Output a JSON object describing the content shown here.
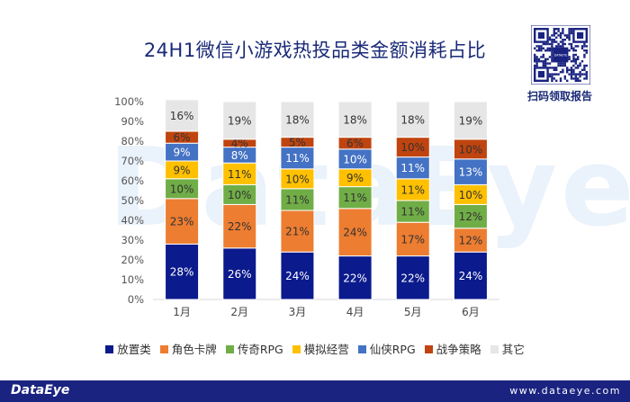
{
  "header": {
    "title": "24H1微信小游戏热投品类金额消耗占比",
    "qr_caption": "扫码领取报告",
    "qr_center_text": "DATAEYE"
  },
  "watermark": "DataEye",
  "footer": {
    "brand": "DataEye",
    "url": "www.dataeye.com"
  },
  "chart_data": {
    "type": "bar",
    "stacked": true,
    "categories": [
      "1月",
      "2月",
      "3月",
      "4月",
      "5月",
      "6月"
    ],
    "y_ticks": [
      "0%",
      "10%",
      "20%",
      "30%",
      "40%",
      "50%",
      "60%",
      "70%",
      "80%",
      "90%",
      "100%"
    ],
    "ylim": [
      0,
      100
    ],
    "grid": false,
    "legend_position": "bottom",
    "series": [
      {
        "name": "放置类",
        "color": "#0b1a8c",
        "label_color": "#ffffff",
        "values": [
          28,
          26,
          24,
          22,
          22,
          24
        ],
        "labels": [
          "28%",
          "26%",
          "24%",
          "22%",
          "22%",
          "24%"
        ]
      },
      {
        "name": "角色卡牌",
        "color": "#ed7d31",
        "label_color": "#333333",
        "values": [
          23,
          22,
          21,
          24,
          17,
          12
        ],
        "labels": [
          "23%",
          "22%",
          "21%",
          "24%",
          "17%",
          "12%"
        ]
      },
      {
        "name": "传奇RPG",
        "color": "#70ad47",
        "label_color": "#333333",
        "values": [
          10,
          10,
          11,
          11,
          11,
          12
        ],
        "labels": [
          "10%",
          "10%",
          "11%",
          "11%",
          "11%",
          "12%"
        ]
      },
      {
        "name": "模拟经营",
        "color": "#ffc000",
        "label_color": "#333333",
        "values": [
          9,
          11,
          10,
          9,
          11,
          10
        ],
        "labels": [
          "9%",
          "11%",
          "10%",
          "9%",
          "11%",
          "10%"
        ]
      },
      {
        "name": "仙侠RPG",
        "color": "#4472c4",
        "label_color": "#ffffff",
        "values": [
          9,
          8,
          11,
          10,
          11,
          13
        ],
        "labels": [
          "9%",
          "8%",
          "11%",
          "10%",
          "11%",
          "13%"
        ]
      },
      {
        "name": "战争策略",
        "color": "#c0440f",
        "label_color": "#333333",
        "values": [
          6,
          4,
          5,
          6,
          10,
          10
        ],
        "labels": [
          "6%",
          "4%",
          "5%",
          "6%",
          "10%",
          "10%"
        ]
      },
      {
        "name": "其它",
        "color": "#e7e6e6",
        "label_color": "#333333",
        "values": [
          16,
          19,
          18,
          18,
          18,
          19
        ],
        "labels": [
          "16%",
          "19%",
          "18%",
          "18%",
          "18%",
          "19%"
        ]
      }
    ]
  }
}
